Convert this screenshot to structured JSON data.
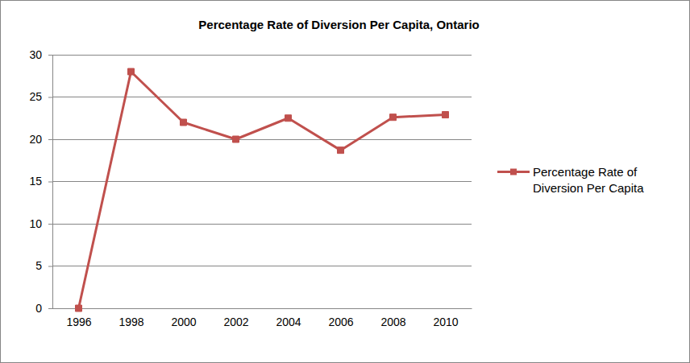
{
  "chart_data": {
    "type": "line",
    "title": "Percentage Rate of Diversion Per Capita, Ontario",
    "categories": [
      "1996",
      "1998",
      "2000",
      "2002",
      "2004",
      "2006",
      "2008",
      "2010"
    ],
    "series": [
      {
        "name": "Percentage Rate of Diversion Per Capita",
        "color": "#c0504d",
        "marker": "square",
        "values": [
          0,
          28,
          22,
          20,
          22.5,
          18.7,
          22.6,
          22.9
        ]
      }
    ],
    "ylim": [
      0,
      30
    ],
    "yticks": [
      0,
      5,
      10,
      15,
      20,
      25,
      30
    ],
    "grid": true,
    "legend": "right"
  }
}
